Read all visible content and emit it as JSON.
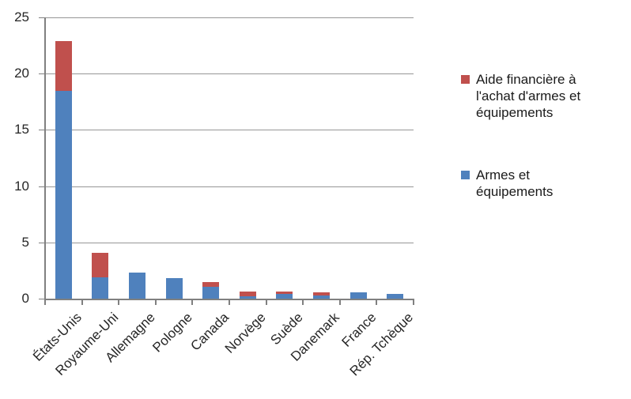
{
  "chart_data": {
    "type": "bar",
    "stacked": true,
    "title": "",
    "xlabel": "",
    "ylabel": "",
    "categories": [
      "États-Unis",
      "Royaume-Uni",
      "Allemagne",
      "Pologne",
      "Canada",
      "Norvège",
      "Suède",
      "Danemark",
      "France",
      "Rép. Tchèque"
    ],
    "series": [
      {
        "name": "Armes et équipements",
        "color": "#4F81BD",
        "values": [
          18.5,
          1.9,
          2.3,
          1.85,
          1.05,
          0.2,
          0.4,
          0.3,
          0.55,
          0.4
        ]
      },
      {
        "name": "Aide financière à l'achat d'armes et équipements",
        "color": "#C0504D",
        "values": [
          4.4,
          2.2,
          0,
          0,
          0.4,
          0.45,
          0.2,
          0.25,
          0,
          0
        ]
      }
    ],
    "ylim": [
      0,
      25
    ],
    "yticks": [
      0,
      5,
      10,
      15,
      20,
      25
    ],
    "y_tick_labels": [
      "0",
      "5",
      "10",
      "15",
      "20",
      "25"
    ],
    "grid": true,
    "legend_position": "right"
  },
  "legend": {
    "items": [
      {
        "label": "Aide financière à l'achat d'armes et équipements",
        "color": "#C0504D"
      },
      {
        "label": "Armes et équipements",
        "color": "#4F81BD"
      }
    ]
  },
  "colors": {
    "bar_blue": "#4F81BD",
    "bar_red": "#C0504D",
    "gridline": "#969696",
    "axis": "#808080",
    "background": "#FFFFFF",
    "text": "#262626"
  }
}
